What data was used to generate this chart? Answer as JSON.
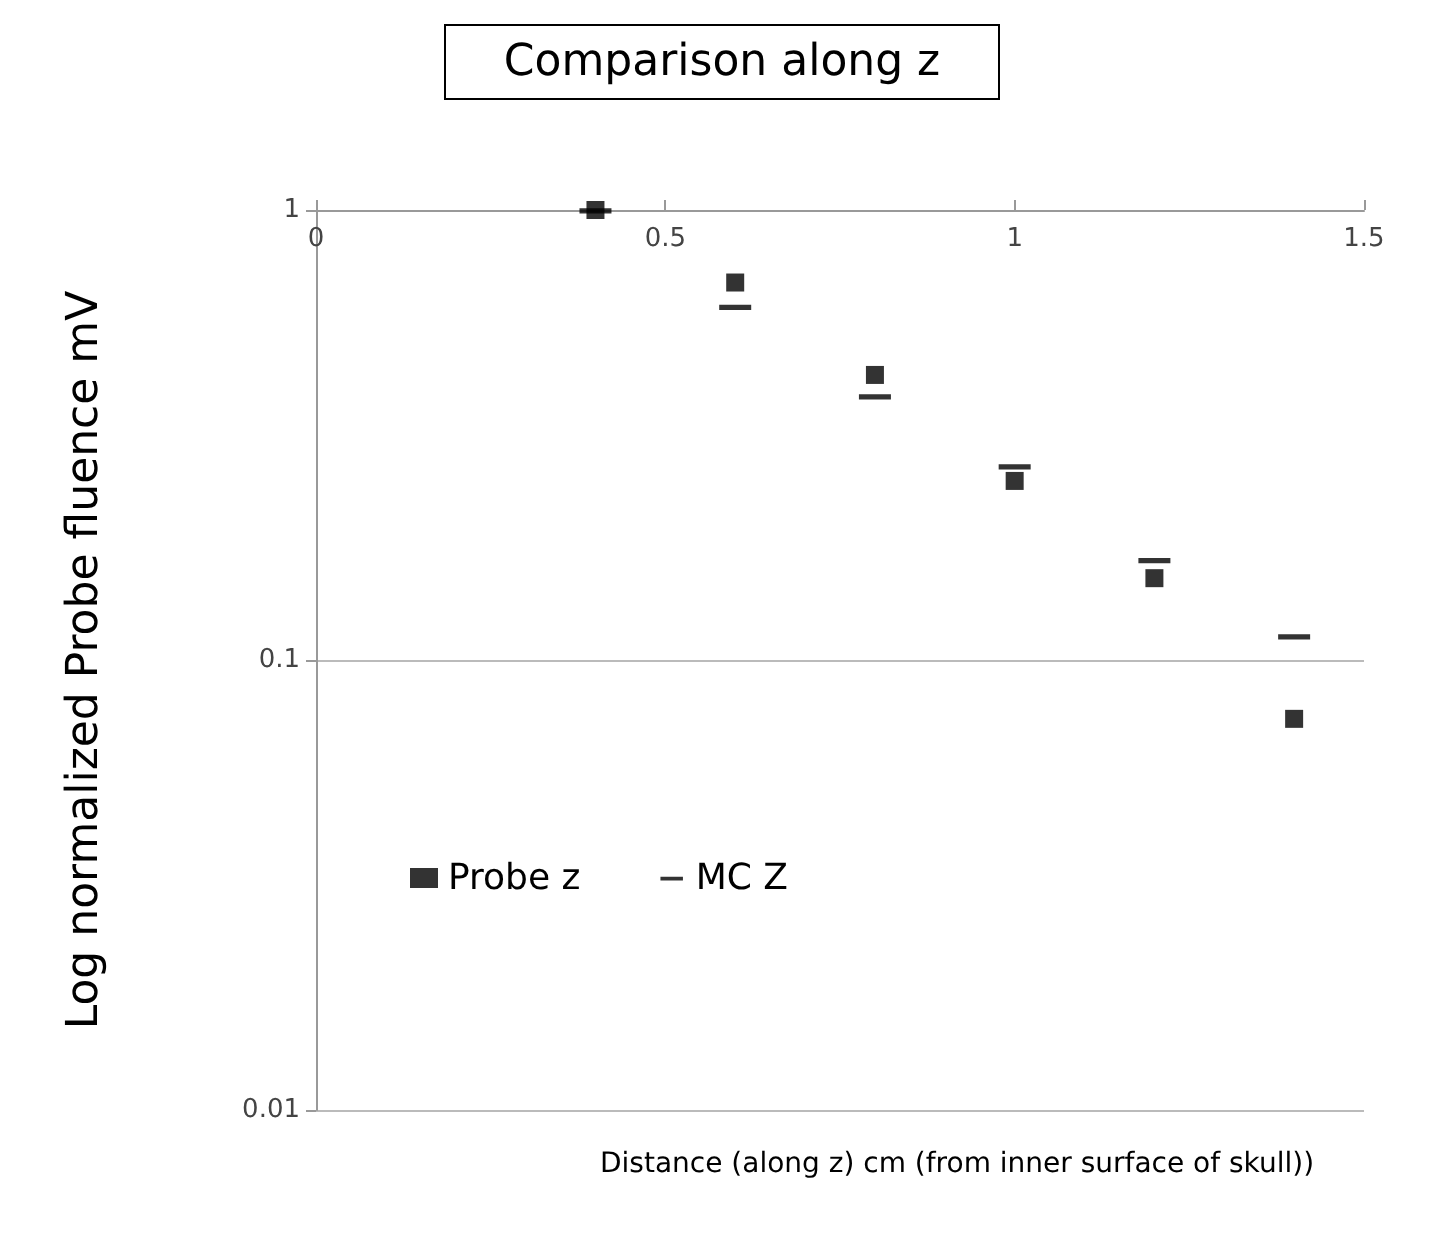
{
  "chart_data": {
    "type": "scatter",
    "title": "Comparison along z",
    "xlabel": "Distance (along z) cm (from inner surface of skull))",
    "ylabel": "Log normalized Probe fluence mV",
    "x": [
      0.4,
      0.6,
      0.8,
      1.0,
      1.2,
      1.4
    ],
    "series": [
      {
        "name": "Probe z",
        "color": "#000000",
        "marker": "square",
        "values": [
          1,
          0.69,
          0.43,
          0.25,
          0.152,
          0.074
        ]
      },
      {
        "name": "MC Z",
        "color": "#000000",
        "values": [
          1,
          0.61,
          0.386,
          0.27,
          0.167,
          0.113
        ]
      }
    ],
    "xlim": [
      0,
      1.5
    ],
    "xticks": [
      0,
      0.5,
      1,
      1.5
    ],
    "ylim": [
      0.01,
      1
    ],
    "yticks": [
      0.01,
      0.1,
      1
    ],
    "log": "y",
    "grid": "y",
    "legend": "left"
  }
}
